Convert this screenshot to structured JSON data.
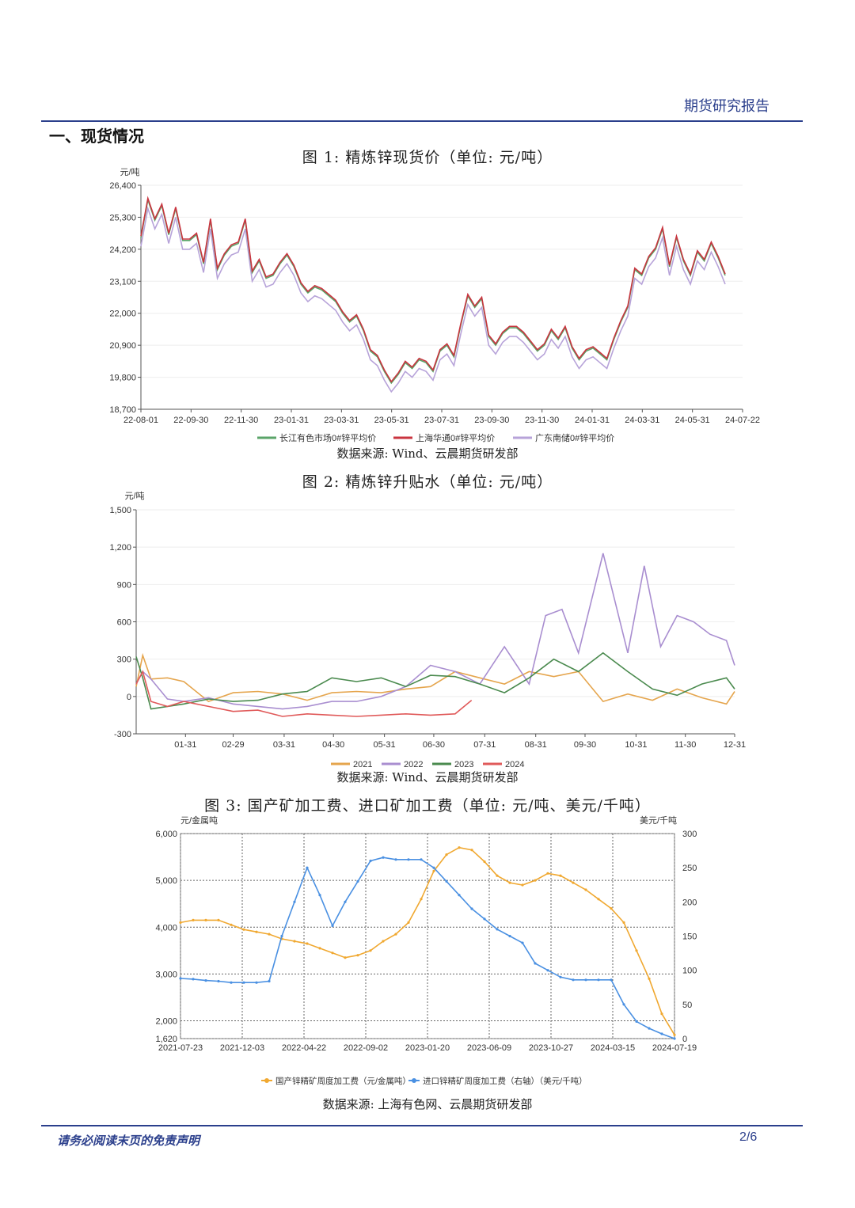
{
  "header": {
    "report_type": "期货研究报告"
  },
  "section_title": "一、现货情况",
  "figures": [
    {
      "caption": "图 1:  精炼锌现货价（单位:  元/吨）",
      "source": "数据来源:  Wind、云晨期货研发部"
    },
    {
      "caption": "图 2:  精炼锌升贴水（单位:  元/吨）",
      "source": "数据来源:  Wind、云晨期货研发部"
    },
    {
      "caption": "图 3:  国产矿加工费、进口矿加工费（单位:  元/吨、美元/千吨）",
      "source": "数据来源:  上海有色网、云晨期货研发部"
    }
  ],
  "footer": {
    "disclaimer": "请务必阅读末页的免责声明",
    "page": "2/6"
  },
  "chart_data": [
    {
      "type": "line",
      "y_unit": "元/吨",
      "ylim": [
        18700,
        26400
      ],
      "y_ticks": [
        "18,700",
        "19,800",
        "20,900",
        "22,000",
        "23,100",
        "24,200",
        "25,300",
        "26,400"
      ],
      "x_ticks": [
        "22-08-01",
        "22-09-30",
        "22-11-30",
        "23-01-31",
        "23-03-31",
        "23-05-31",
        "23-07-31",
        "23-09-30",
        "23-11-30",
        "24-01-31",
        "24-03-31",
        "24-05-31",
        "24-07-22"
      ],
      "series": [
        {
          "name": "长江有色市场0#锌平均价",
          "color": "#5aa469",
          "values": [
            24600,
            25900,
            25200,
            25700,
            24700,
            25600,
            24500,
            24500,
            24700,
            23700,
            25200,
            23500,
            24000,
            24300,
            24400,
            25200,
            23400,
            23800,
            23200,
            23300,
            23700,
            24000,
            23600,
            23000,
            22700,
            22900,
            22800,
            22600,
            22400,
            22000,
            21700,
            21900,
            21400,
            20700,
            20500,
            20000,
            19600,
            19900,
            20300,
            20100,
            20400,
            20300,
            20000,
            20700,
            20900,
            20500,
            21600,
            22600,
            22200,
            22500,
            21200,
            20900,
            21300,
            21500,
            21500,
            21300,
            21000,
            20700,
            20900,
            21400,
            21100,
            21500,
            20800,
            20400,
            20700,
            20800,
            20600,
            20400,
            21100,
            21700,
            22200,
            23500,
            23300,
            23900,
            24200,
            24900,
            23600,
            24600,
            23800,
            23300,
            24100,
            23800,
            24400,
            23900,
            23300
          ]
        },
        {
          "name": "上海华通0#锌平均价",
          "color": "#c9343f",
          "values": [
            24650,
            25950,
            25250,
            25750,
            24750,
            25650,
            24550,
            24550,
            24750,
            23750,
            25250,
            23550,
            24050,
            24350,
            24450,
            25250,
            23450,
            23850,
            23250,
            23350,
            23750,
            24050,
            23650,
            23050,
            22750,
            22950,
            22850,
            22650,
            22450,
            22050,
            21750,
            21950,
            21450,
            20750,
            20550,
            20050,
            19650,
            19950,
            20350,
            20150,
            20450,
            20350,
            20050,
            20750,
            20950,
            20550,
            21650,
            22650,
            22250,
            22550,
            21250,
            20950,
            21350,
            21550,
            21550,
            21350,
            21050,
            20750,
            20950,
            21450,
            21150,
            21550,
            20850,
            20450,
            20750,
            20850,
            20650,
            20450,
            21150,
            21750,
            22250,
            23550,
            23350,
            23950,
            24250,
            24950,
            23650,
            24650,
            23850,
            23350,
            24150,
            23850,
            24450,
            23950,
            23350
          ]
        },
        {
          "name": "广东南储0#锌平均价",
          "color": "#b7a3d9",
          "values": [
            24300,
            25600,
            24900,
            25400,
            24400,
            25300,
            24200,
            24200,
            24400,
            23400,
            24900,
            23200,
            23700,
            24000,
            24100,
            24900,
            23100,
            23500,
            22900,
            23000,
            23400,
            23700,
            23300,
            22700,
            22400,
            22600,
            22500,
            22300,
            22100,
            21700,
            21400,
            21600,
            21100,
            20400,
            20200,
            19700,
            19300,
            19600,
            20000,
            19800,
            20100,
            20000,
            19700,
            20400,
            20600,
            20200,
            21300,
            22300,
            21900,
            22200,
            20900,
            20600,
            21000,
            21200,
            21200,
            21000,
            20700,
            20400,
            20600,
            21100,
            20800,
            21200,
            20500,
            20100,
            20400,
            20500,
            20300,
            20100,
            20800,
            21400,
            21900,
            23200,
            23000,
            23600,
            23900,
            24600,
            23300,
            24300,
            23500,
            23000,
            23800,
            23500,
            24100,
            23600,
            23000
          ]
        }
      ]
    },
    {
      "type": "line",
      "y_unit": "元/吨",
      "ylim": [
        -300,
        1500
      ],
      "y_ticks": [
        "-300",
        "0",
        "300",
        "600",
        "900",
        "1,200",
        "1,500"
      ],
      "x_ticks": [
        "01-31",
        "02-29",
        "03-31",
        "04-30",
        "05-31",
        "06-30",
        "07-31",
        "08-31",
        "09-30",
        "10-31",
        "11-30",
        "12-31"
      ],
      "series": [
        {
          "name": "2021",
          "color": "#e5a54d",
          "x": [
            1,
            5,
            10,
            20,
            30,
            45,
            60,
            75,
            90,
            105,
            120,
            135,
            150,
            165,
            180,
            195,
            210,
            225,
            240,
            255,
            270,
            285,
            300,
            315,
            330,
            345,
            360,
            365
          ],
          "values": [
            80,
            330,
            140,
            150,
            120,
            -40,
            30,
            40,
            20,
            -30,
            30,
            40,
            30,
            60,
            80,
            200,
            150,
            100,
            200,
            160,
            200,
            -40,
            20,
            -30,
            60,
            -10,
            -60,
            40
          ]
        },
        {
          "name": "2022",
          "color": "#a98ed0",
          "x": [
            1,
            5,
            10,
            20,
            30,
            45,
            60,
            75,
            90,
            105,
            120,
            135,
            150,
            165,
            180,
            195,
            210,
            225,
            240,
            250,
            260,
            270,
            285,
            300,
            310,
            320,
            330,
            340,
            350,
            360,
            365
          ],
          "values": [
            100,
            200,
            140,
            -20,
            -40,
            -10,
            -60,
            -80,
            -100,
            -80,
            -40,
            -40,
            0,
            80,
            250,
            200,
            100,
            400,
            100,
            650,
            700,
            350,
            1150,
            350,
            1050,
            400,
            650,
            600,
            500,
            450,
            250
          ]
        },
        {
          "name": "2023",
          "color": "#4a8a4e",
          "x": [
            1,
            5,
            10,
            20,
            30,
            45,
            60,
            75,
            90,
            105,
            120,
            135,
            150,
            165,
            180,
            195,
            210,
            225,
            240,
            255,
            270,
            285,
            300,
            315,
            330,
            345,
            360,
            365
          ],
          "values": [
            320,
            150,
            -100,
            -80,
            -60,
            -20,
            -40,
            -30,
            20,
            40,
            150,
            120,
            150,
            80,
            170,
            160,
            100,
            30,
            150,
            300,
            200,
            350,
            200,
            60,
            10,
            100,
            150,
            60
          ]
        },
        {
          "name": "2024",
          "color": "#e05a5a",
          "x": [
            1,
            5,
            10,
            20,
            30,
            45,
            60,
            75,
            90,
            105,
            120,
            135,
            150,
            165,
            180,
            195,
            205
          ],
          "values": [
            100,
            200,
            -40,
            -80,
            -40,
            -80,
            -120,
            -110,
            -160,
            -140,
            -150,
            -160,
            -150,
            -140,
            -150,
            -140,
            -30
          ]
        }
      ]
    },
    {
      "type": "line",
      "y_unit_left": "元/金属吨",
      "y_unit_right": "美元/千吨",
      "ylim_left": [
        1620,
        6000
      ],
      "ylim_right": [
        0,
        300
      ],
      "y_ticks_left": [
        "1,620",
        "2,000",
        "3,000",
        "4,000",
        "5,000",
        "6,000"
      ],
      "y_ticks_right": [
        "0",
        "50",
        "100",
        "150",
        "200",
        "250",
        "300"
      ],
      "x_ticks": [
        "2021-07-23",
        "2021-12-03",
        "2022-04-22",
        "2022-09-02",
        "2023-01-20",
        "2023-06-09",
        "2023-10-27",
        "2024-03-15",
        "2024-07-19"
      ],
      "series": [
        {
          "name": "国产锌精矿周度加工费（元/金属吨）",
          "color": "#f0a830",
          "axis": "left",
          "values": [
            4100,
            4150,
            4150,
            4150,
            4050,
            3950,
            3900,
            3850,
            3750,
            3700,
            3650,
            3550,
            3450,
            3350,
            3400,
            3500,
            3700,
            3850,
            4100,
            4600,
            5200,
            5550,
            5700,
            5650,
            5400,
            5100,
            4950,
            4900,
            5000,
            5150,
            5100,
            4950,
            4800,
            4600,
            4400,
            4100,
            3500,
            2900,
            2150,
            1700
          ]
        },
        {
          "name": "进口锌精矿周度加工费（右轴）（美元/千吨）",
          "color": "#4a90e2",
          "axis": "right",
          "values": [
            88,
            87,
            85,
            84,
            82,
            82,
            82,
            84,
            150,
            200,
            250,
            210,
            165,
            200,
            230,
            260,
            265,
            262,
            262,
            262,
            250,
            230,
            210,
            190,
            175,
            160,
            150,
            140,
            110,
            100,
            90,
            86,
            86,
            86,
            86,
            50,
            25,
            15,
            7,
            0
          ]
        }
      ]
    }
  ]
}
